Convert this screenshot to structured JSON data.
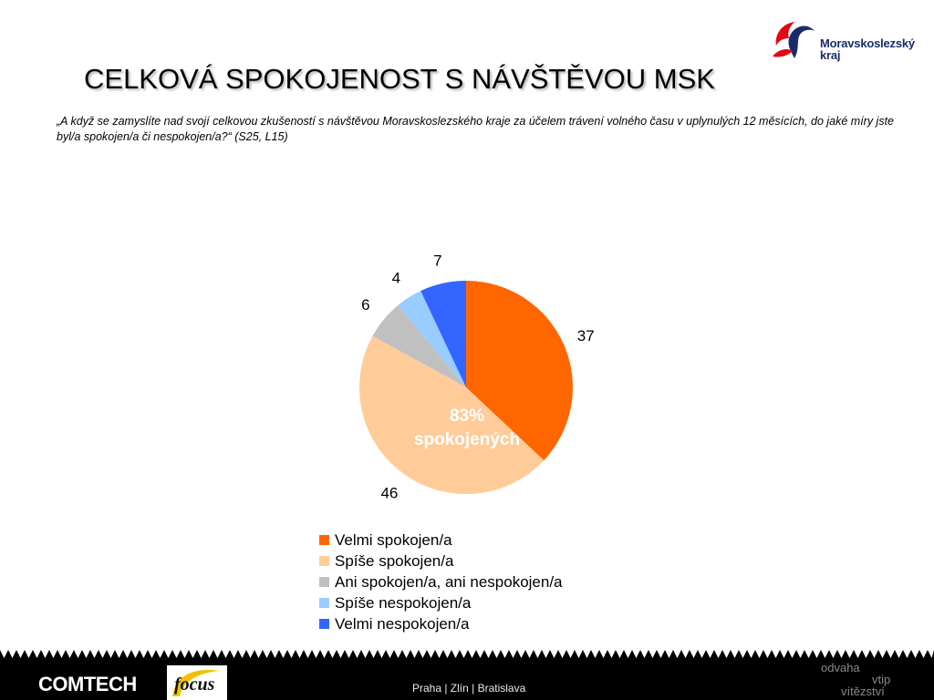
{
  "slide": {
    "title": "CELKOVÁ SPOKOJENOST S NÁVŠTĚVOU MSK",
    "question": "„A když se zamyslíte nad svojí celkovou zkušeností s návštěvou Moravskoslezského kraje za účelem trávení volného času v uplynulých 12 měsících, do jaké míry jste byl/a spokojen/a či nespokojen/a?“ (S25, L15)"
  },
  "logo": {
    "line1": "Moravskoslezský",
    "line2": "kraj",
    "colors": {
      "red": "#e30613",
      "blue": "#1a2b6d"
    }
  },
  "chart_data": {
    "type": "pie",
    "title": "",
    "categories": [
      "Velmi spokojen/a",
      "Spíše spokojen/a",
      "Ani spokojen/a, ani nespokojen/a",
      "Spíše nespokojen/a",
      "Velmi nespokojen/a"
    ],
    "values": [
      37,
      46,
      6,
      4,
      7
    ],
    "value_labels": [
      "37",
      "46",
      "6",
      "4",
      "7"
    ],
    "colors": [
      "#ff6600",
      "#ffcc99",
      "#c0c0c0",
      "#99ccff",
      "#3366ff"
    ],
    "center_annotation": {
      "line1": "83%",
      "line2": "spokojených"
    },
    "legend_position": "bottom",
    "start": "12 o'clock",
    "direction": "clockwise"
  },
  "footer": {
    "brand": "COMTECH",
    "partner_logo": "focus",
    "cities": "Praha | Zlín | Bratislava",
    "slogan": [
      "odvaha",
      "vtip",
      "vítězství"
    ]
  }
}
